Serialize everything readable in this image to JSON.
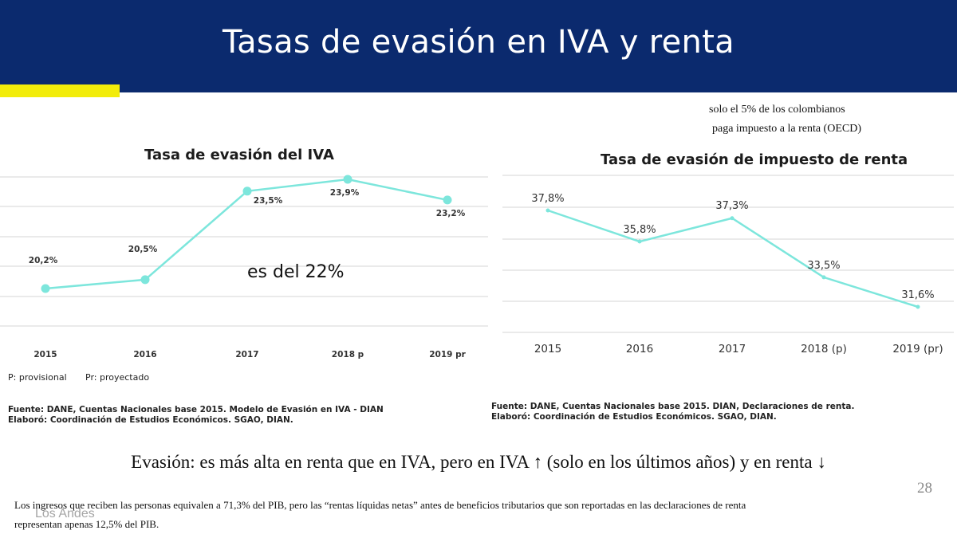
{
  "slide": {
    "title": "Tasas de evasión en IVA y renta",
    "note_line1": "solo el 5% de los colombianos",
    "note_line2": "paga impuesto a la renta (OECD)",
    "overlay_text": "es del 22%",
    "summary": "Evasión: es más alta en renta que en IVA, pero en IVA ↑ (solo en los últimos años) y en renta ↓",
    "page_number": "28",
    "footnote_line1": "Los ingresos que reciben las personas equivalen a 71,3% del PIB, pero las “rentas líquidas  netas” antes de beneficios tributarios que son reportadas en las declaraciones de renta",
    "footnote_line2": "representan apenas  12,5% del PIB.",
    "logo_text": "Los Andes",
    "colors": {
      "banner": "#0b2a6e",
      "accent": "#f2ec0a",
      "line": "#7de6dc"
    }
  },
  "legend_note": {
    "provisional": "P: provisional",
    "proyectado": "Pr: proyectado"
  },
  "sources": {
    "iva_line1": "Fuente: DANE, Cuentas Nacionales base 2015. Modelo de Evasión en IVA - DIAN",
    "iva_line2": "Elaboró: Coordinación de Estudios Económicos. SGAO, DIAN.",
    "renta_line1": "Fuente: DANE, Cuentas Nacionales base 2015. DIAN, Declaraciones de renta.",
    "renta_line2": "Elaboró: Coordinación de Estudios Económicos. SGAO, DIAN."
  },
  "chart_data": [
    {
      "type": "line",
      "title": "Tasa de evasión del IVA",
      "categories": [
        "2015",
        "2016",
        "2017",
        "2018 p",
        "2019 pr"
      ],
      "values": [
        20.2,
        20.5,
        23.5,
        23.9,
        23.2
      ],
      "data_labels": [
        "20,2%",
        "20,5%",
        "23,5%",
        "23,9%",
        "23,2%"
      ],
      "grid": true,
      "markers": true
    },
    {
      "type": "line",
      "title": "Tasa de evasión de impuesto de renta",
      "categories": [
        "2015",
        "2016",
        "2017",
        "2018 (p)",
        "2019 (pr)"
      ],
      "values": [
        37.8,
        35.8,
        37.3,
        33.5,
        31.6
      ],
      "data_labels": [
        "37,8%",
        "35,8%",
        "37,3%",
        "33,5%",
        "31,6%"
      ],
      "grid": true,
      "markers": false
    }
  ]
}
